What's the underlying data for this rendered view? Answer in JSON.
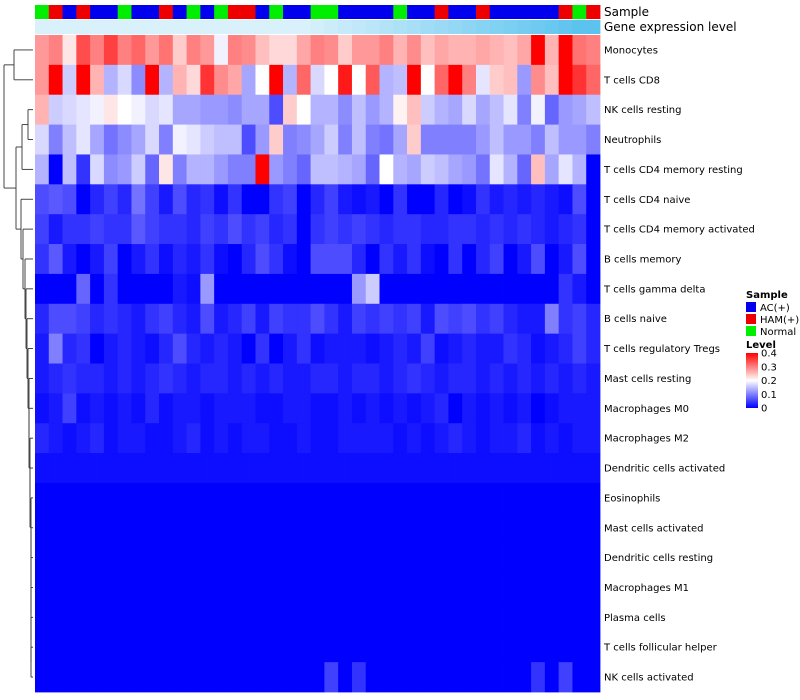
{
  "chart_data": {
    "type": "heatmap",
    "title": "",
    "annotations": [
      {
        "name": "Sample"
      },
      {
        "name": "Gene expression level"
      }
    ],
    "sample_groups": [
      "AC(+)",
      "HAM(+)",
      "Normal"
    ],
    "sample_group_colors": [
      "#0000ee",
      "#ee0000",
      "#00ee00"
    ],
    "sample_assignments": [
      2,
      1,
      0,
      1,
      0,
      0,
      2,
      0,
      0,
      1,
      0,
      2,
      0,
      2,
      1,
      1,
      0,
      2,
      0,
      0,
      2,
      2,
      0,
      0,
      0,
      0,
      2,
      0,
      0,
      1,
      0,
      0,
      1,
      0,
      0,
      0,
      0,
      0,
      1,
      2,
      1
    ],
    "gene_expression_colors": [
      "#d9f1fb",
      "#5bc3ee"
    ],
    "gene_expression_levels": [
      0,
      0,
      0,
      0,
      0,
      0,
      0,
      0,
      0,
      0,
      0,
      0,
      0,
      0,
      0,
      0,
      0,
      0,
      0,
      0,
      0.05,
      0.1,
      0.15,
      0.2,
      0.25,
      0.3,
      0.35,
      0.4,
      0.45,
      0.5,
      0.55,
      0.6,
      0.65,
      0.7,
      0.75,
      0.8,
      0.85,
      0.9,
      0.95,
      1,
      1
    ],
    "rows": [
      "Monocytes",
      "T cells CD8",
      "NK cells resting",
      "Neutrophils",
      "T cells CD4 memory resting",
      "T cells CD4 naive",
      "T cells CD4 memory activated",
      "B cells memory",
      "T cells gamma delta",
      "B cells naive",
      "T cells regulatory  Tregs",
      "Mast cells resting",
      "Macrophages M0",
      "Macrophages M2",
      "Dendritic cells activated",
      "Eosinophils",
      "Mast cells activated",
      "Dendritic cells resting",
      "Macrophages M1",
      "Plasma cells",
      "T cells follicular helper",
      "NK cells activated"
    ],
    "values": [
      [
        0.28,
        0.3,
        0.22,
        0.34,
        0.3,
        0.35,
        0.3,
        0.32,
        0.28,
        0.31,
        0.24,
        0.3,
        0.28,
        0.19,
        0.3,
        0.29,
        0.25,
        0.23,
        0.23,
        0.27,
        0.3,
        0.29,
        0.24,
        0.28,
        0.28,
        0.3,
        0.26,
        0.29,
        0.25,
        0.27,
        0.26,
        0.26,
        0.27,
        0.26,
        0.25,
        0.27,
        0.4,
        0.26,
        0.4,
        0.31,
        0.3
      ],
      [
        0.28,
        0.4,
        0.16,
        0.4,
        0.26,
        0.14,
        0.17,
        0.11,
        0.4,
        0.14,
        0.26,
        0.23,
        0.36,
        0.29,
        0.27,
        0.13,
        0.2,
        0.42,
        0.14,
        0.32,
        0.17,
        0.2,
        0.38,
        0.2,
        0.33,
        0.14,
        0.15,
        0.42,
        0.2,
        0.32,
        0.42,
        0.3,
        0.18,
        0.24,
        0.25,
        0.12,
        0.29,
        0.25,
        0.4,
        0.36,
        0.32
      ],
      [
        0.26,
        0.16,
        0.17,
        0.18,
        0.19,
        0.22,
        0.2,
        0.19,
        0.17,
        0.18,
        0.13,
        0.13,
        0.12,
        0.12,
        0.11,
        0.13,
        0.13,
        0.06,
        0.24,
        0.2,
        0.14,
        0.14,
        0.11,
        0.15,
        0.12,
        0.14,
        0.21,
        0.25,
        0.16,
        0.14,
        0.13,
        0.17,
        0.13,
        0.15,
        0.18,
        0.1,
        0.19,
        0.08,
        0.12,
        0.13,
        0.15
      ],
      [
        0.17,
        0.1,
        0.15,
        0.18,
        0.13,
        0.09,
        0.11,
        0.13,
        0.17,
        0.1,
        0.19,
        0.18,
        0.16,
        0.15,
        0.15,
        0.06,
        0.12,
        0.24,
        0.1,
        0.11,
        0.13,
        0.16,
        0.1,
        0.15,
        0.1,
        0.09,
        0.13,
        0.24,
        0.1,
        0.1,
        0.1,
        0.1,
        0.12,
        0.15,
        0.12,
        0.12,
        0.1,
        0.15,
        0.12,
        0.12,
        0.1
      ],
      [
        0.14,
        0,
        0.15,
        0.04,
        0.17,
        0.11,
        0.12,
        0.16,
        0.08,
        0.22,
        0.1,
        0.14,
        0.14,
        0.12,
        0.1,
        0.1,
        0.4,
        0.12,
        0.1,
        0.08,
        0.15,
        0.15,
        0.14,
        0.13,
        0.08,
        0.2,
        0.14,
        0.13,
        0.16,
        0.15,
        0.13,
        0.12,
        0.09,
        0.18,
        0.14,
        0.08,
        0.25,
        0.13,
        0.18,
        0.14,
        0
      ],
      [
        0.06,
        0.07,
        0.06,
        0,
        0.03,
        0.05,
        0.03,
        0.09,
        0.05,
        0.02,
        0.06,
        0.03,
        0.04,
        0.01,
        0.04,
        0,
        0,
        0.04,
        0.05,
        0,
        0.03,
        0.05,
        0.02,
        0.01,
        0.02,
        0,
        0.04,
        0,
        0,
        0.03,
        0,
        0.01,
        0.04,
        0.02,
        0.03,
        0.02,
        0.03,
        0.02,
        0.01,
        0.06,
        0
      ],
      [
        0.05,
        0.02,
        0.04,
        0.04,
        0.05,
        0.04,
        0.04,
        0.07,
        0.05,
        0.04,
        0.04,
        0.03,
        0.05,
        0.04,
        0.06,
        0.04,
        0.05,
        0.03,
        0.04,
        0,
        0.04,
        0.05,
        0.04,
        0.05,
        0.04,
        0.03,
        0.04,
        0.04,
        0.03,
        0.03,
        0.04,
        0.04,
        0.03,
        0.04,
        0.03,
        0.04,
        0.03,
        0.02,
        0.03,
        0.04,
        0
      ],
      [
        0.04,
        0.07,
        0.02,
        0,
        0.02,
        0.05,
        0,
        0.02,
        0.04,
        0.01,
        0.03,
        0.02,
        0.04,
        0.01,
        0,
        0.03,
        0.06,
        0.04,
        0.01,
        0,
        0.06,
        0.06,
        0.06,
        0.03,
        0,
        0.04,
        0.02,
        0.04,
        0.01,
        0,
        0.04,
        0,
        0.03,
        0.05,
        0,
        0.02,
        0.06,
        0,
        0.02,
        0.06,
        0
      ],
      [
        0,
        0,
        0,
        0.08,
        0,
        0.04,
        0,
        0,
        0,
        0,
        0.02,
        0.01,
        0.12,
        0,
        0,
        0,
        0,
        0,
        0,
        0,
        0,
        0,
        0,
        0.12,
        0.16,
        0,
        0,
        0,
        0,
        0,
        0,
        0,
        0,
        0,
        0,
        0,
        0,
        0,
        0.04,
        0.02,
        0
      ],
      [
        0.03,
        0.06,
        0.06,
        0.05,
        0.03,
        0.04,
        0.03,
        0.02,
        0.04,
        0.05,
        0.03,
        0.02,
        0.06,
        0.02,
        0.03,
        0.05,
        0.02,
        0.05,
        0.04,
        0.04,
        0.06,
        0.04,
        0.02,
        0.05,
        0.04,
        0.05,
        0.04,
        0.05,
        0.02,
        0.06,
        0.05,
        0.06,
        0.04,
        0.05,
        0.03,
        0.02,
        0.02,
        0.1,
        0.04,
        0.05,
        0.03
      ],
      [
        0.02,
        0.1,
        0.03,
        0.04,
        0,
        0.02,
        0.03,
        0.02,
        0.01,
        0.03,
        0.06,
        0.03,
        0.02,
        0.03,
        0.02,
        0,
        0.04,
        0,
        0.02,
        0.04,
        0.01,
        0.02,
        0.02,
        0.02,
        0.01,
        0.02,
        0.03,
        0.02,
        0.05,
        0.01,
        0.02,
        0.03,
        0.02,
        0.02,
        0.04,
        0.03,
        0.01,
        0.02,
        0.03,
        0.05,
        0.03
      ],
      [
        0.02,
        0.03,
        0.04,
        0.03,
        0.03,
        0.02,
        0.03,
        0.02,
        0.03,
        0.04,
        0.03,
        0.02,
        0.03,
        0.03,
        0.02,
        0.03,
        0.02,
        0.03,
        0.02,
        0.02,
        0.03,
        0.03,
        0.02,
        0.03,
        0.03,
        0.02,
        0.03,
        0.04,
        0.03,
        0.02,
        0.03,
        0.03,
        0.02,
        0.03,
        0.02,
        0.03,
        0.02,
        0.03,
        0.02,
        0.03,
        0.02
      ],
      [
        0.01,
        0.02,
        0.05,
        0.01,
        0.02,
        0.01,
        0.02,
        0.01,
        0.03,
        0.01,
        0.02,
        0.02,
        0.01,
        0.02,
        0.02,
        0.02,
        0.01,
        0.01,
        0.02,
        0.02,
        0.01,
        0.01,
        0.02,
        0.01,
        0.02,
        0.01,
        0.02,
        0.01,
        0.02,
        0.03,
        0,
        0.02,
        0.01,
        0.02,
        0.01,
        0.02,
        0,
        0.01,
        0.02,
        0.02,
        0.02
      ],
      [
        0.03,
        0.02,
        0.01,
        0.02,
        0.03,
        0.01,
        0.02,
        0.02,
        0.01,
        0.01,
        0.02,
        0.03,
        0.01,
        0.02,
        0.01,
        0.02,
        0.02,
        0.01,
        0.01,
        0.02,
        0.01,
        0.01,
        0.02,
        0.02,
        0.02,
        0.02,
        0.01,
        0.02,
        0.01,
        0.02,
        0.03,
        0.02,
        0.01,
        0.02,
        0.02,
        0.03,
        0.01,
        0.02,
        0.01,
        0.02,
        0.02
      ],
      [
        0.01,
        0.01,
        0.01,
        0.01,
        0.01,
        0.01,
        0.01,
        0.01,
        0.01,
        0.01,
        0.01,
        0.01,
        0.01,
        0.01,
        0.01,
        0.01,
        0.01,
        0.01,
        0.01,
        0.01,
        0.01,
        0.01,
        0.01,
        0.01,
        0.01,
        0.01,
        0.01,
        0.01,
        0.01,
        0.01,
        0.01,
        0.01,
        0.01,
        0.01,
        0.01,
        0.01,
        0.01,
        0.01,
        0.01,
        0.01,
        0.01
      ],
      [
        0,
        0,
        0,
        0,
        0,
        0,
        0,
        0,
        0,
        0,
        0,
        0,
        0,
        0,
        0,
        0,
        0,
        0,
        0,
        0,
        0,
        0,
        0,
        0,
        0,
        0,
        0,
        0,
        0,
        0,
        0,
        0,
        0,
        0,
        0,
        0,
        0,
        0,
        0,
        0,
        0
      ],
      [
        0,
        0,
        0,
        0,
        0,
        0,
        0,
        0,
        0,
        0,
        0,
        0,
        0,
        0,
        0,
        0,
        0,
        0,
        0,
        0,
        0,
        0,
        0,
        0,
        0,
        0,
        0,
        0,
        0,
        0,
        0,
        0,
        0,
        0,
        0,
        0,
        0,
        0,
        0,
        0,
        0
      ],
      [
        0,
        0,
        0,
        0,
        0,
        0,
        0,
        0,
        0,
        0,
        0,
        0,
        0,
        0,
        0,
        0,
        0,
        0,
        0,
        0,
        0,
        0,
        0,
        0,
        0,
        0,
        0,
        0,
        0,
        0,
        0,
        0,
        0,
        0,
        0,
        0,
        0,
        0,
        0,
        0,
        0
      ],
      [
        0,
        0,
        0,
        0,
        0,
        0,
        0,
        0,
        0,
        0,
        0,
        0,
        0,
        0,
        0,
        0,
        0,
        0,
        0,
        0,
        0,
        0,
        0,
        0,
        0,
        0,
        0,
        0,
        0,
        0,
        0,
        0,
        0,
        0,
        0,
        0,
        0,
        0,
        0,
        0,
        0
      ],
      [
        0,
        0,
        0,
        0,
        0,
        0,
        0,
        0,
        0,
        0,
        0,
        0,
        0,
        0,
        0,
        0,
        0,
        0,
        0,
        0,
        0,
        0,
        0,
        0,
        0,
        0,
        0,
        0,
        0,
        0,
        0,
        0,
        0,
        0,
        0,
        0,
        0,
        0,
        0,
        0,
        0
      ],
      [
        0,
        0,
        0,
        0,
        0,
        0,
        0,
        0,
        0,
        0,
        0,
        0,
        0,
        0,
        0,
        0,
        0,
        0,
        0,
        0,
        0,
        0,
        0,
        0,
        0,
        0,
        0,
        0,
        0,
        0,
        0,
        0,
        0,
        0,
        0,
        0,
        0,
        0,
        0,
        0,
        0
      ],
      [
        0,
        0,
        0,
        0,
        0,
        0,
        0,
        0,
        0,
        0,
        0,
        0,
        0,
        0,
        0,
        0,
        0,
        0,
        0,
        0,
        0,
        0.05,
        0,
        0.04,
        0,
        0,
        0,
        0,
        0,
        0,
        0,
        0,
        0,
        0,
        0,
        0,
        0.04,
        0,
        0.05,
        0,
        0
      ]
    ],
    "legend": {
      "sample_title": "Sample",
      "level_title": "Level",
      "level_ticks": [
        0,
        0.1,
        0.2,
        0.3,
        0.4
      ],
      "level_tick_labels": [
        "0",
        "0.1",
        "0.2",
        "0.3",
        "0.4"
      ],
      "level_colors": [
        "#0000ff",
        "#ffffff",
        "#ff0000"
      ],
      "placement": "right"
    }
  }
}
